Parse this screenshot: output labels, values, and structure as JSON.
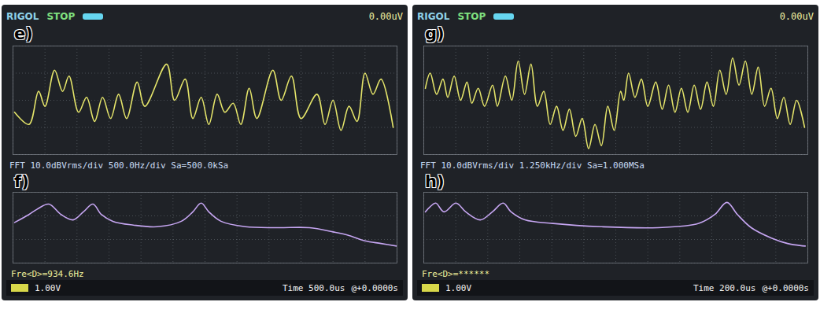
{
  "chart_data": [
    {
      "type": "line",
      "title": "e)",
      "annotations": [
        "RIGOL",
        "STOP",
        "0.00uV"
      ],
      "x": [
        25,
        250,
        400,
        500,
        650,
        775,
        875,
        1025,
        1150,
        1275,
        1400,
        1525,
        1650,
        1775,
        1940,
        2060,
        2400,
        2525,
        2690,
        2810,
        2940,
        3060,
        3190,
        3310,
        3440,
        3560,
        3690,
        3810,
        4060,
        4190,
        4350,
        4500,
        4750,
        4875,
        5000,
        5125,
        5250,
        5375,
        5500,
        5625,
        5750,
        5940
      ],
      "values": [
        -0.44,
        -0.89,
        0.33,
        -0.22,
        1.11,
        0.33,
        0.89,
        -0.44,
        0.11,
        -0.78,
        0.11,
        -0.67,
        0.22,
        -0.67,
        0.67,
        -0.22,
        1.33,
        0,
        0.78,
        -0.67,
        0.11,
        -0.89,
        0.22,
        -0.44,
        -0.11,
        -0.89,
        0.44,
        -0.67,
        1.11,
        0,
        0.89,
        -0.67,
        0.22,
        -0.89,
        0,
        -1.11,
        -0.22,
        -0.78,
        1.0,
        0.22,
        0.78,
        -1.0
      ],
      "color": "#e4e46a",
      "xlim": [
        0,
        6000
      ],
      "ylim": [
        -2,
        2
      ],
      "xticks": [
        0,
        500,
        1000,
        1500,
        2000,
        2500,
        3000,
        3500,
        4000,
        4500,
        5000,
        5500,
        6000
      ],
      "yticks": [
        -2,
        -1,
        0,
        1,
        2
      ],
      "grid": true,
      "tick_labels": false
    },
    {
      "type": "line",
      "title": "f)",
      "subtitle": "FFT 10.0dBVrms/div 500.0Hz/div Sa=500.0kSa",
      "annotations": [
        "Fre<D>=934.6Hz",
        "1.00V",
        "Time 500.0us",
        "@+0.0000s"
      ],
      "x": [
        25,
        250,
        375,
        560,
        750,
        940,
        1100,
        1250,
        1380,
        1560,
        1880,
        2250,
        2630,
        2810,
        2940,
        3060,
        3250,
        3630,
        4130,
        4630,
        5000,
        5250,
        5500,
        5750,
        6000
      ],
      "values": [
        -12.8,
        -9.4,
        -7.2,
        -5,
        -9.4,
        -11.7,
        -8.3,
        -5,
        -9.4,
        -12.3,
        -13.9,
        -14.6,
        -12.3,
        -8.3,
        -4.6,
        -8.3,
        -12.3,
        -14.6,
        -15,
        -15,
        -16.8,
        -18.3,
        -20.6,
        -21.7,
        -22.8
      ],
      "color": "#c6a6f2",
      "xlim": [
        0,
        6000
      ],
      "ylim": [
        -30,
        0
      ],
      "xticks": [
        0,
        500,
        1000,
        1500,
        2000,
        2500,
        3000,
        3500,
        4000,
        4500,
        5000,
        5500,
        6000
      ],
      "yticks": [
        -30,
        -20,
        -10,
        0
      ],
      "grid": true,
      "tick_labels": false
    },
    {
      "type": "line",
      "title": "g)",
      "annotations": [
        "RIGOL",
        "STOP",
        "0.00uV"
      ],
      "x": [
        10,
        40,
        80,
        120,
        150,
        190,
        230,
        270,
        300,
        340,
        380,
        430,
        460,
        510,
        550,
        590,
        630,
        670,
        710,
        750,
        790,
        830,
        870,
        910,
        950,
        990,
        1030,
        1070,
        1110,
        1150,
        1190,
        1230,
        1250,
        1280,
        1320,
        1360,
        1400,
        1450,
        1490,
        1530,
        1570,
        1610,
        1650,
        1690,
        1730,
        1770,
        1810,
        1850,
        1890,
        1930,
        1970,
        2010,
        2050,
        2090,
        2130,
        2170,
        2210,
        2250,
        2290,
        2330,
        2380
      ],
      "values": [
        0.44,
        1.0,
        0.22,
        0.78,
        0.11,
        0.89,
        0,
        0.67,
        -0.11,
        0.44,
        -0.22,
        0.56,
        -0.22,
        0.89,
        0,
        1.44,
        0.22,
        1.33,
        -0.22,
        0.33,
        -0.89,
        -0.22,
        -1.11,
        -0.33,
        -1.33,
        -0.67,
        -1.78,
        -0.89,
        -1.67,
        -0.22,
        -1.11,
        0.33,
        0,
        1.0,
        0.11,
        0.78,
        -0.22,
        0.67,
        -0.33,
        0.56,
        -0.44,
        0.44,
        -0.44,
        0.56,
        -0.33,
        0.67,
        -0.22,
        1.11,
        0.22,
        1.56,
        0.56,
        1.44,
        0.22,
        1.22,
        -0.22,
        0.44,
        -0.67,
        0.11,
        -0.89,
        0,
        -1.0
      ],
      "color": "#e4e46a",
      "xlim": [
        0,
        2400
      ],
      "ylim": [
        -2,
        2
      ],
      "xticks": [
        0,
        200,
        400,
        600,
        800,
        1000,
        1200,
        1400,
        1600,
        1800,
        2000,
        2200,
        2400
      ],
      "yticks": [
        -2,
        -1,
        0,
        1,
        2
      ],
      "grid": true,
      "tick_labels": false
    },
    {
      "type": "line",
      "title": "h)",
      "subtitle": "FFT 10.0dBVrms/div 1.250kHz/div Sa=1.000MSa",
      "annotations": [
        "Fre<D>=******",
        "1.00V",
        "Time 200.0us",
        "@+0.0000s"
      ],
      "x": [
        60,
        250,
        470,
        790,
        1260,
        1640,
        2210,
        2680,
        3100,
        3410,
        3950,
        5050,
        6950,
        9160,
        10740,
        11370,
        11840,
        12250,
        12790,
        13580,
        14210,
        14900
      ],
      "values": [
        -8.3,
        -6.1,
        -4.6,
        -8.3,
        -4.6,
        -8.3,
        -11.7,
        -8.3,
        -4.6,
        -8.3,
        -11.7,
        -13.2,
        -14.6,
        -15,
        -13.2,
        -9.4,
        -4.3,
        -9.4,
        -15,
        -19.4,
        -21.7,
        -22.8
      ],
      "color": "#c6a6f2",
      "xlim": [
        0,
        15000
      ],
      "ylim": [
        -30,
        0
      ],
      "xticks": [
        0,
        1250,
        2500,
        3750,
        5000,
        6250,
        7500,
        8750,
        10000,
        11250,
        12500,
        13750,
        15000
      ],
      "yticks": [
        -30,
        -20,
        -10,
        0
      ],
      "grid": true,
      "tick_labels": false
    }
  ]
}
